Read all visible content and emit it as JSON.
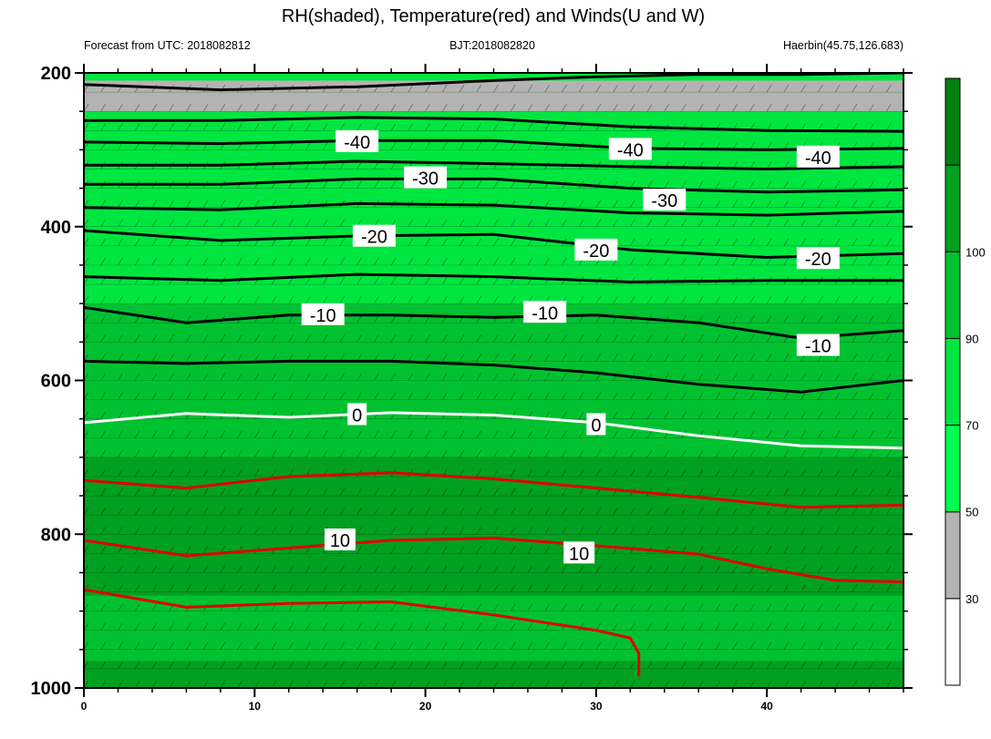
{
  "chart_data": {
    "type": "heatmap",
    "title": "RH(shaded), Temperature(red) and Winds(U and W)",
    "subtitle_left": "Forecast from UTC: 2018082812",
    "subtitle_center": "BJT:2018082820",
    "subtitle_right": "Haerbin(45.75,126.683)",
    "xlabel": "",
    "ylabel": "",
    "x_range": [
      0,
      48
    ],
    "y_range": [
      1000,
      200
    ],
    "y_reversed": true,
    "x_ticks": [
      0,
      10,
      20,
      30,
      40
    ],
    "y_ticks": [
      200,
      400,
      600,
      800,
      1000
    ],
    "colorbar": {
      "labels": [
        "30",
        "50",
        "70",
        "90",
        "100"
      ],
      "colors": [
        "#ffffff",
        "#b3b3b3",
        "#00ff50",
        "#00e640",
        "#00c230",
        "#00a020",
        "#008010"
      ]
    },
    "rh_fill_levels": [
      {
        "rh": 95,
        "color": "#00a020",
        "bottom": 1000,
        "top": 965
      },
      {
        "rh": 85,
        "color": "#00c230",
        "bottom": 965,
        "top": 880
      },
      {
        "rh": 95,
        "color": "#00a020",
        "bottom": 880,
        "top": 700
      },
      {
        "rh": 85,
        "color": "#00c230",
        "bottom": 700,
        "top": 500
      },
      {
        "rh": 75,
        "color": "#00e640",
        "bottom": 500,
        "top": 250
      },
      {
        "rh": 40,
        "color": "#b3b3b3",
        "bottom": 250,
        "top": 210
      }
    ],
    "temperature_contours": [
      {
        "label": "10",
        "color": "#e00000",
        "x": [
          0,
          6,
          12,
          18,
          24,
          30,
          36,
          40,
          44,
          48
        ],
        "y": [
          808,
          828,
          818,
          808,
          805,
          815,
          826,
          845,
          860,
          862
        ]
      },
      {
        "label": "",
        "color": "#e00000",
        "x": [
          0,
          6,
          12,
          18,
          24,
          30,
          36,
          42,
          48
        ],
        "y": [
          730,
          740,
          725,
          720,
          728,
          740,
          752,
          765,
          762
        ]
      },
      {
        "label": "",
        "color": "#e00000",
        "x": [
          0,
          6,
          12,
          18,
          24,
          30,
          32,
          32.5,
          32.5
        ],
        "y": [
          872,
          895,
          890,
          888,
          905,
          925,
          935,
          955,
          985
        ]
      },
      {
        "label": "0",
        "color": "#ffffff",
        "x": [
          0,
          6,
          12,
          18,
          24,
          30,
          36,
          42,
          48
        ],
        "y": [
          655,
          643,
          648,
          642,
          645,
          655,
          672,
          685,
          688
        ]
      },
      {
        "label": "-10",
        "color": "#000000",
        "x": [
          0,
          6,
          12,
          18,
          24,
          30,
          36,
          42,
          48
        ],
        "y": [
          575,
          578,
          575,
          575,
          580,
          590,
          605,
          615,
          600
        ]
      },
      {
        "label": "-10",
        "color": "#000000",
        "x": [
          0,
          6,
          12,
          18,
          24,
          30,
          36,
          42,
          48
        ],
        "y": [
          505,
          525,
          515,
          515,
          518,
          515,
          525,
          545,
          535
        ]
      },
      {
        "label": "",
        "color": "#000000",
        "x": [
          0,
          8,
          16,
          24,
          32,
          40,
          48
        ],
        "y": [
          465,
          470,
          462,
          465,
          472,
          470,
          470
        ]
      },
      {
        "label": "-20",
        "color": "#000000",
        "x": [
          0,
          8,
          16,
          24,
          32,
          40,
          48
        ],
        "y": [
          405,
          418,
          412,
          410,
          430,
          440,
          435
        ]
      },
      {
        "label": "",
        "color": "#000000",
        "x": [
          0,
          8,
          16,
          24,
          32,
          40,
          48
        ],
        "y": [
          375,
          378,
          370,
          372,
          382,
          385,
          380
        ]
      },
      {
        "label": "-30",
        "color": "#000000",
        "x": [
          0,
          8,
          16,
          24,
          32,
          40,
          48
        ],
        "y": [
          345,
          345,
          338,
          338,
          350,
          355,
          352
        ]
      },
      {
        "label": "",
        "color": "#000000",
        "x": [
          0,
          8,
          16,
          24,
          32,
          40,
          48
        ],
        "y": [
          320,
          320,
          315,
          318,
          322,
          325,
          322
        ]
      },
      {
        "label": "-40",
        "color": "#000000",
        "x": [
          0,
          8,
          16,
          24,
          32,
          40,
          48
        ],
        "y": [
          290,
          292,
          288,
          288,
          298,
          300,
          298
        ]
      },
      {
        "label": "",
        "color": "#000000",
        "x": [
          0,
          8,
          16,
          24,
          32,
          40,
          48
        ],
        "y": [
          262,
          262,
          258,
          260,
          270,
          275,
          276
        ]
      },
      {
        "label": "",
        "color": "#000000",
        "x": [
          0,
          8,
          16,
          24,
          30,
          36,
          42,
          48
        ],
        "y": [
          215,
          222,
          218,
          210,
          205,
          202,
          202,
          200
        ]
      }
    ],
    "contour_labels": [
      {
        "text": "-40",
        "x": 16,
        "y": 290
      },
      {
        "text": "-40",
        "x": 32,
        "y": 300
      },
      {
        "text": "-40",
        "x": 43,
        "y": 310
      },
      {
        "text": "-30",
        "x": 20,
        "y": 337
      },
      {
        "text": "-30",
        "x": 34,
        "y": 366
      },
      {
        "text": "-20",
        "x": 17,
        "y": 413
      },
      {
        "text": "-20",
        "x": 30,
        "y": 431
      },
      {
        "text": "-20",
        "x": 43,
        "y": 442
      },
      {
        "text": "-10",
        "x": 14,
        "y": 515
      },
      {
        "text": "-10",
        "x": 27,
        "y": 512
      },
      {
        "text": "-10",
        "x": 43,
        "y": 555
      },
      {
        "text": "0",
        "x": 16,
        "y": 645
      },
      {
        "text": "0",
        "x": 30,
        "y": 658
      },
      {
        "text": "10",
        "x": 15,
        "y": 808
      },
      {
        "text": "10",
        "x": 29,
        "y": 825
      }
    ]
  }
}
